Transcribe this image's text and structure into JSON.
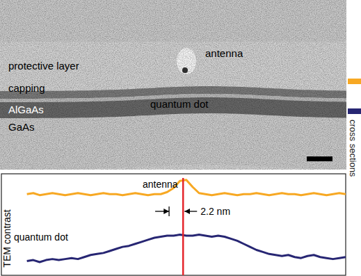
{
  "micrograph": {
    "labels": [
      "protective layer",
      "capping",
      "AlGaAs",
      "GaAs",
      "antenna",
      "quantum dot"
    ],
    "cross_sections": {
      "text": "cross sections",
      "colors": [
        "#f7a823",
        "#272673"
      ]
    }
  },
  "chart_data": {
    "type": "line",
    "y_label": "TEM contrast",
    "x": [
      0,
      1,
      2,
      3,
      4,
      5,
      6,
      7,
      8,
      9,
      10,
      11,
      12,
      13,
      14,
      15,
      16,
      17,
      18,
      19,
      20,
      21,
      22,
      23,
      24,
      25,
      26,
      27,
      28,
      29,
      30,
      31,
      32,
      33,
      34,
      35,
      36,
      37,
      38,
      39,
      40,
      41,
      42,
      43,
      44,
      45,
      46,
      47,
      48,
      49,
      50
    ],
    "xlim": [
      -4,
      50
    ],
    "ylim": [
      0,
      10
    ],
    "tick_labels": false,
    "series": [
      {
        "name": "antenna",
        "color": "#f7a823",
        "values": [
          8.0,
          8.1,
          7.9,
          8.0,
          8.1,
          8.0,
          7.9,
          8.0,
          8.1,
          8.0,
          7.9,
          8.0,
          8.1,
          8.0,
          8.0,
          7.9,
          8.0,
          8.1,
          8.0,
          7.9,
          8.0,
          8.0,
          8.2,
          8.6,
          9.3,
          9.4,
          8.7,
          8.1,
          8.0,
          7.9,
          8.0,
          8.1,
          8.0,
          7.9,
          8.0,
          8.0,
          8.1,
          8.0,
          7.9,
          8.0,
          8.1,
          8.0,
          8.0,
          7.9,
          8.0,
          8.1,
          8.0,
          7.9,
          8.0,
          8.1,
          8.0
        ]
      },
      {
        "name": "quantum dot",
        "color": "#272673",
        "values": [
          1.4,
          1.5,
          1.3,
          1.5,
          1.6,
          1.5,
          1.6,
          1.7,
          1.6,
          1.8,
          2.0,
          2.1,
          2.2,
          2.4,
          2.6,
          2.8,
          2.9,
          3.1,
          3.3,
          3.5,
          3.7,
          3.8,
          3.9,
          3.9,
          4.0,
          3.9,
          3.9,
          4.0,
          3.9,
          3.8,
          3.9,
          3.8,
          3.6,
          3.4,
          3.1,
          2.8,
          2.5,
          2.3,
          2.1,
          2.0,
          1.9,
          2.0,
          1.8,
          1.7,
          1.9,
          2.0,
          1.8,
          1.7,
          1.6,
          1.7,
          1.8
        ]
      }
    ],
    "annotations": [
      {
        "text": "2.2 nm",
        "x": [
          22.3,
          24.5
        ]
      }
    ],
    "marker_line": {
      "x": 24.5,
      "color": "#e4262c"
    }
  }
}
